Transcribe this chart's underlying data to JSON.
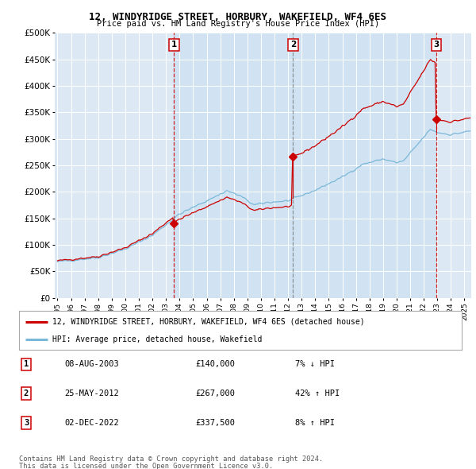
{
  "title": "12, WINDYRIDGE STREET, HORBURY, WAKEFIELD, WF4 6ES",
  "subtitle": "Price paid vs. HM Land Registry's House Price Index (HPI)",
  "background_color": "#dce9f5",
  "grid_color": "#c8d8e8",
  "ylim": [
    0,
    500000
  ],
  "yticks": [
    0,
    50000,
    100000,
    150000,
    200000,
    250000,
    300000,
    350000,
    400000,
    450000,
    500000
  ],
  "ytick_labels": [
    "£0",
    "£50K",
    "£100K",
    "£150K",
    "£200K",
    "£250K",
    "£300K",
    "£350K",
    "£400K",
    "£450K",
    "£500K"
  ],
  "xlim_start": 1994.8,
  "xlim_end": 2025.5,
  "sale_dates": [
    2003.6,
    2012.37,
    2022.92
  ],
  "sale_prices": [
    140000,
    267000,
    337500
  ],
  "sale_labels": [
    "1",
    "2",
    "3"
  ],
  "hpi_color": "#7ab8d9",
  "price_color": "#cc0000",
  "legend_label_price": "12, WINDYRIDGE STREET, HORBURY, WAKEFIELD, WF4 6ES (detached house)",
  "legend_label_hpi": "HPI: Average price, detached house, Wakefield",
  "table_rows": [
    [
      "1",
      "08-AUG-2003",
      "£140,000",
      "7% ↓ HPI"
    ],
    [
      "2",
      "25-MAY-2012",
      "£267,000",
      "42% ↑ HPI"
    ],
    [
      "3",
      "02-DEC-2022",
      "£337,500",
      "8% ↑ HPI"
    ]
  ],
  "footnote1": "Contains HM Land Registry data © Crown copyright and database right 2024.",
  "footnote2": "This data is licensed under the Open Government Licence v3.0."
}
